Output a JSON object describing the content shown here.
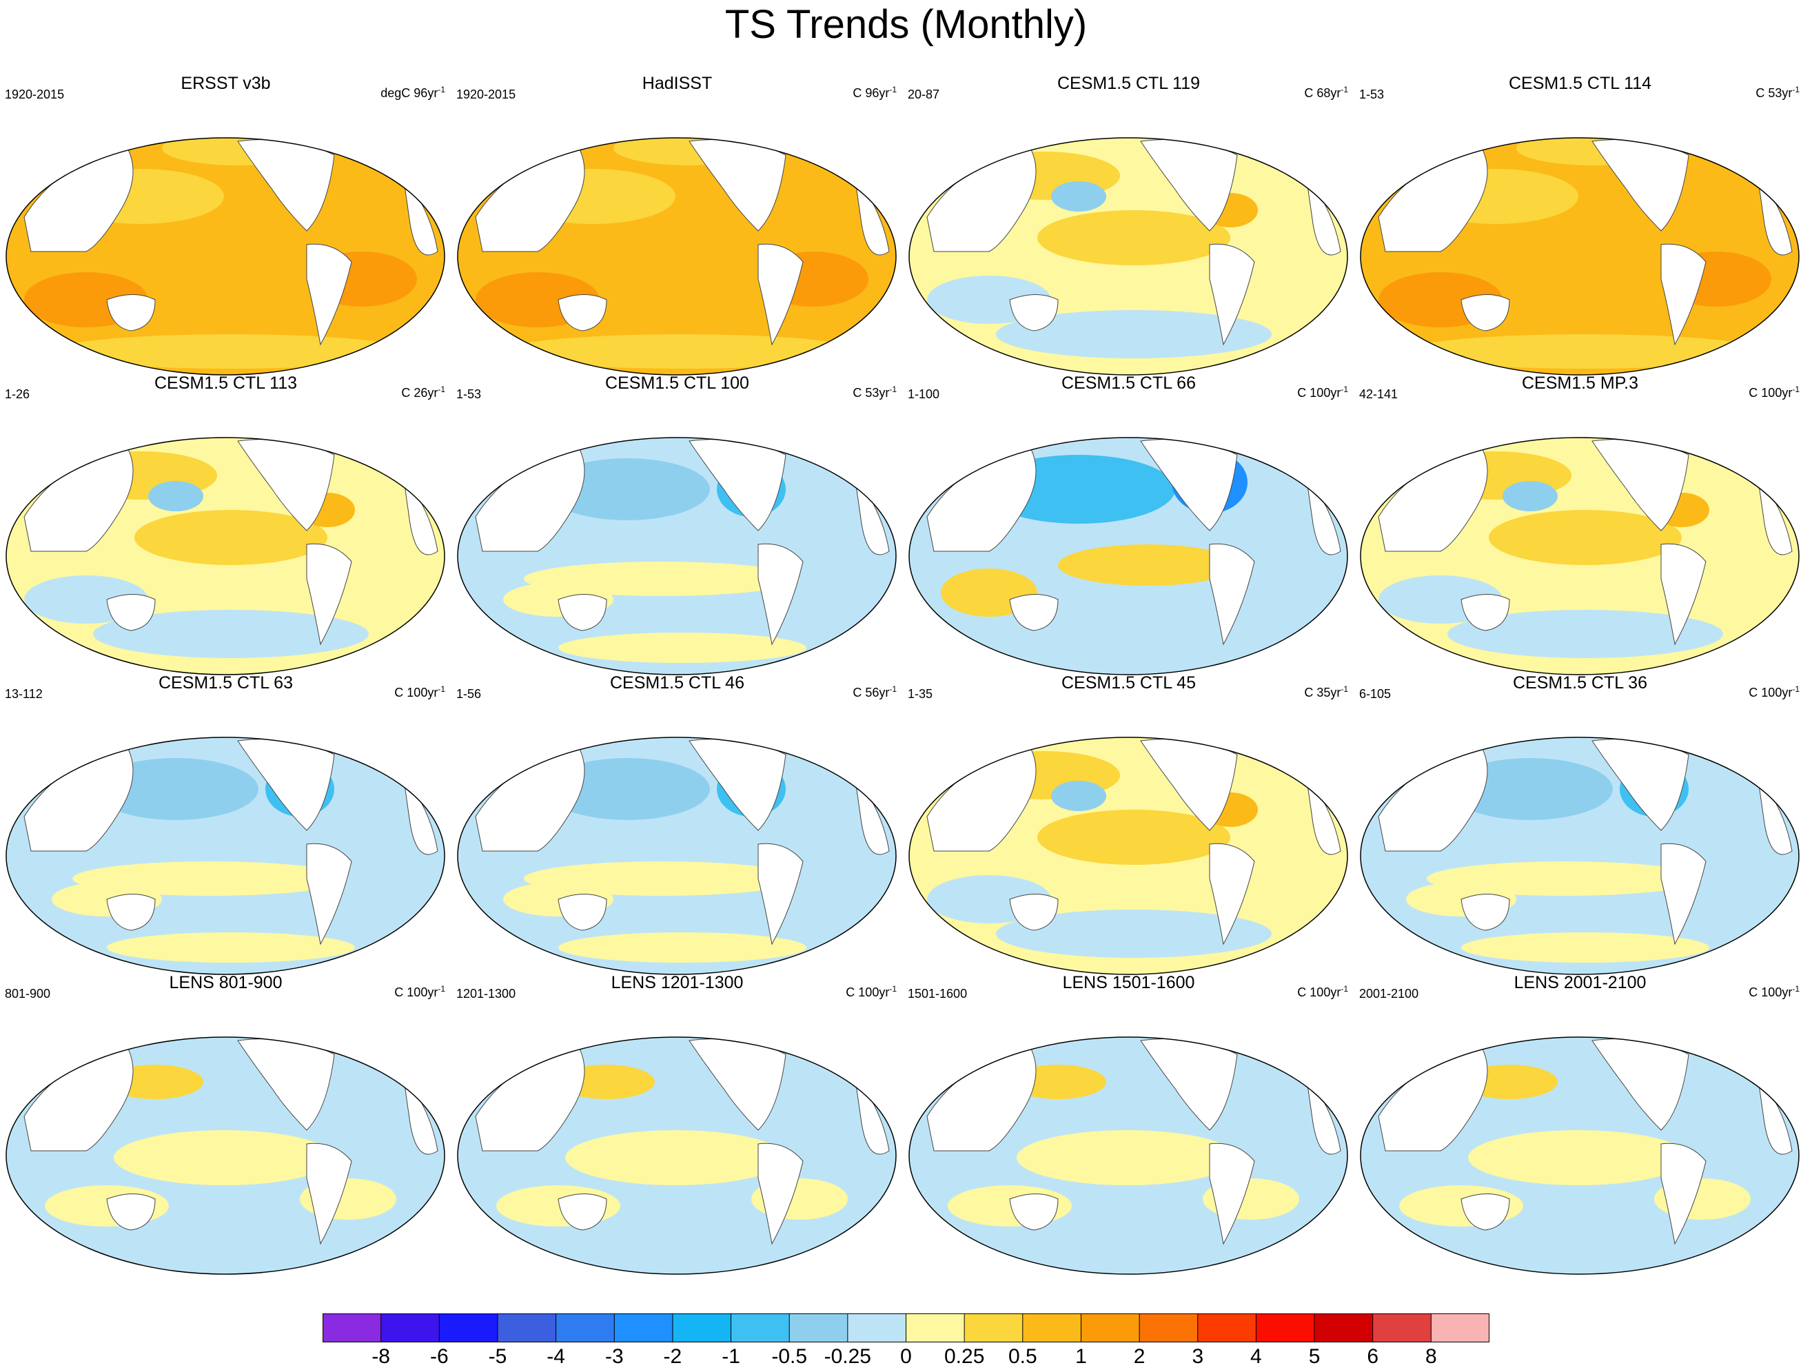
{
  "title": "TS Trends (Monthly)",
  "chart_data": {
    "type": "heatmap",
    "title": "TS Trends (Monthly)",
    "colorbar": {
      "labels": [
        "-8",
        "-6",
        "-5",
        "-4",
        "-3",
        "-2",
        "-1",
        "-0.5",
        "-0.25",
        "0",
        "0.25",
        "0.5",
        "1",
        "2",
        "3",
        "4",
        "5",
        "6",
        "8"
      ],
      "colors": [
        "#8a2be2",
        "#3d14ee",
        "#1a1aff",
        "#3c5fe0",
        "#2f7cf0",
        "#1e90ff",
        "#14b4f5",
        "#3fc0f2",
        "#8fcfee",
        "#bde4f6",
        "#fef8a0",
        "#fbd63c",
        "#fbba18",
        "#fb9b0a",
        "#fb7305",
        "#fb3b00",
        "#fb0e00",
        "#d20000",
        "#e04040",
        "#f9b3b3"
      ]
    },
    "panels": [
      {
        "title": "ERSST v3b",
        "period": "1920-2015",
        "units": "degC 96yr",
        "sup": "-1",
        "pattern": "warm"
      },
      {
        "title": "HadISST",
        "period": "1920-2015",
        "units": "C 96yr",
        "sup": "-1",
        "pattern": "warm"
      },
      {
        "title": "CESM1.5 CTL 119",
        "period": "20-87",
        "units": "C 68yr",
        "sup": "-1",
        "pattern": "mixed-warm"
      },
      {
        "title": "CESM1.5 CTL 114",
        "period": "1-53",
        "units": "C 53yr",
        "sup": "-1",
        "pattern": "warm"
      },
      {
        "title": "CESM1.5 CTL 113",
        "period": "1-26",
        "units": "C 26yr",
        "sup": "-1",
        "pattern": "mixed-warm"
      },
      {
        "title": "CESM1.5 CTL 100",
        "period": "1-53",
        "units": "C 53yr",
        "sup": "-1",
        "pattern": "cool"
      },
      {
        "title": "CESM1.5 CTL 66",
        "period": "1-100",
        "units": "C 100yr",
        "sup": "-1",
        "pattern": "cool-strong"
      },
      {
        "title": "CESM1.5 MP.3",
        "period": "42-141",
        "units": "C 100yr",
        "sup": "-1",
        "pattern": "mixed-warm"
      },
      {
        "title": "CESM1.5 CTL 63",
        "period": "13-112",
        "units": "C 100yr",
        "sup": "-1",
        "pattern": "cool"
      },
      {
        "title": "CESM1.5 CTL 46",
        "period": "1-56",
        "units": "C 56yr",
        "sup": "-1",
        "pattern": "cool"
      },
      {
        "title": "CESM1.5 CTL 45",
        "period": "1-35",
        "units": "C 35yr",
        "sup": "-1",
        "pattern": "mixed-warm"
      },
      {
        "title": "CESM1.5 CTL 36",
        "period": "6-105",
        "units": "C 100yr",
        "sup": "-1",
        "pattern": "cool"
      },
      {
        "title": "LENS 801-900",
        "period": "801-900",
        "units": "C 100yr",
        "sup": "-1",
        "pattern": "mixed"
      },
      {
        "title": "LENS 1201-1300",
        "period": "1201-1300",
        "units": "C 100yr",
        "sup": "-1",
        "pattern": "mixed"
      },
      {
        "title": "LENS 1501-1600",
        "period": "1501-1600",
        "units": "C 100yr",
        "sup": "-1",
        "pattern": "mixed"
      },
      {
        "title": "LENS 2001-2100",
        "period": "2001-2100",
        "units": "C 100yr",
        "sup": "-1",
        "pattern": "mixed"
      }
    ]
  }
}
